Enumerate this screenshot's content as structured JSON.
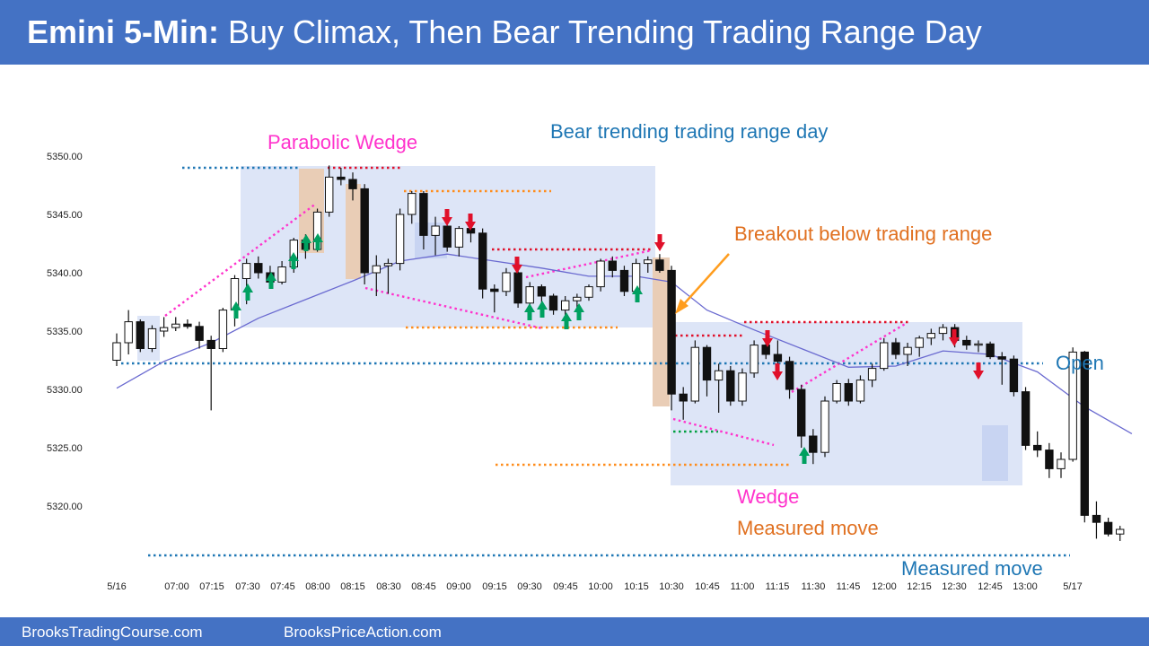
{
  "header": {
    "title_bold": "Emini 5-Min:",
    "title_rest": "Buy Climax, Then Bear Trending Trading Range Day"
  },
  "footer": {
    "left": "BrooksTradingCourse.com",
    "right": "BrooksPriceAction.com"
  },
  "colors": {
    "banner": "#4472c4",
    "magenta": "#ff33cc",
    "orange": "#e07020",
    "blue_text": "#1f77b4",
    "bull_arrow": "#00a060",
    "bear_arrow": "#e0102a",
    "range_box": "#dde5f7",
    "climax_box": "#e9cdb6",
    "ema": "#6a6ad0",
    "dotted_blue": "#1f77b4",
    "dotted_red": "#e0102a",
    "dotted_orange": "#ff8c1a",
    "dotted_green": "#00a040"
  },
  "annotations": {
    "parabolic_wedge": "Parabolic Wedge",
    "bear_trending": "Bear trending trading range day",
    "breakout": "Breakout below trading range",
    "open": "Open",
    "wedge": "Wedge",
    "measured_move_1": "Measured move",
    "measured_move_2": "Measured move"
  },
  "chart_data": {
    "type": "candlestick",
    "interval": "5-Min",
    "ylim": [
      5316.0,
      5352.5
    ],
    "y_ticks": [
      "5350.00",
      "5345.00",
      "5340.00",
      "5335.00",
      "5330.00",
      "5325.00",
      "5320.00"
    ],
    "x_ticks": [
      "5/16",
      "07:00",
      "07:15",
      "07:30",
      "07:45",
      "08:00",
      "08:15",
      "08:30",
      "08:45",
      "09:00",
      "09:15",
      "09:30",
      "09:45",
      "10:00",
      "10:15",
      "10:30",
      "10:45",
      "11:00",
      "11:15",
      "11:30",
      "11:45",
      "12:00",
      "12:15",
      "12:30",
      "12:45",
      "13:00",
      "5/17"
    ],
    "open_level": 5332.2,
    "ohlc": [
      [
        5332.5,
        5334.8,
        5332.0,
        5334.0
      ],
      [
        5334.0,
        5336.8,
        5333.0,
        5335.8
      ],
      [
        5335.8,
        5336.0,
        5333.2,
        5333.5
      ],
      [
        5333.5,
        5335.5,
        5333.2,
        5335.2
      ],
      [
        5335.0,
        5336.2,
        5334.5,
        5335.3
      ],
      [
        5335.3,
        5336.2,
        5335.0,
        5335.6
      ],
      [
        5335.6,
        5336.0,
        5335.2,
        5335.4
      ],
      [
        5335.4,
        5335.8,
        5333.5,
        5334.2
      ],
      [
        5334.2,
        5334.6,
        5328.2,
        5333.5
      ],
      [
        5333.5,
        5337.0,
        5333.2,
        5336.8
      ],
      [
        5336.8,
        5339.8,
        5335.4,
        5339.5
      ],
      [
        5339.5,
        5341.2,
        5337.3,
        5340.8
      ],
      [
        5340.8,
        5341.4,
        5339.5,
        5340.0
      ],
      [
        5340.0,
        5340.6,
        5338.8,
        5339.2
      ],
      [
        5339.2,
        5341.0,
        5339.0,
        5340.5
      ],
      [
        5340.5,
        5343.0,
        5340.0,
        5342.8
      ],
      [
        5342.8,
        5343.3,
        5341.2,
        5342.0
      ],
      [
        5342.0,
        5345.5,
        5341.8,
        5345.2
      ],
      [
        5345.2,
        5349.2,
        5344.8,
        5348.2
      ],
      [
        5348.2,
        5349.0,
        5347.5,
        5348.0
      ],
      [
        5348.0,
        5348.6,
        5346.2,
        5347.2
      ],
      [
        5347.2,
        5347.6,
        5339.0,
        5340.0
      ],
      [
        5340.0,
        5341.5,
        5338.0,
        5340.6
      ],
      [
        5340.6,
        5341.2,
        5338.2,
        5340.8
      ],
      [
        5340.8,
        5345.5,
        5340.2,
        5345.0
      ],
      [
        5345.0,
        5347.0,
        5344.2,
        5346.8
      ],
      [
        5346.8,
        5347.0,
        5342.0,
        5343.2
      ],
      [
        5343.2,
        5344.8,
        5341.5,
        5344.0
      ],
      [
        5344.0,
        5344.2,
        5341.8,
        5342.2
      ],
      [
        5342.2,
        5344.0,
        5341.4,
        5343.8
      ],
      [
        5343.8,
        5344.2,
        5342.6,
        5343.4
      ],
      [
        5343.4,
        5343.8,
        5337.8,
        5338.6
      ],
      [
        5338.6,
        5339.0,
        5336.6,
        5338.4
      ],
      [
        5338.4,
        5340.4,
        5338.0,
        5340.0
      ],
      [
        5340.0,
        5340.5,
        5337.0,
        5337.4
      ],
      [
        5337.4,
        5339.2,
        5337.0,
        5338.8
      ],
      [
        5338.8,
        5339.0,
        5337.4,
        5338.0
      ],
      [
        5338.0,
        5338.2,
        5336.4,
        5336.8
      ],
      [
        5336.8,
        5338.0,
        5336.0,
        5337.6
      ],
      [
        5337.6,
        5338.2,
        5336.6,
        5337.9
      ],
      [
        5337.9,
        5339.0,
        5337.6,
        5338.8
      ],
      [
        5338.8,
        5341.2,
        5338.4,
        5341.0
      ],
      [
        5341.0,
        5341.4,
        5339.6,
        5340.2
      ],
      [
        5340.2,
        5340.6,
        5338.0,
        5338.4
      ],
      [
        5338.4,
        5341.2,
        5338.2,
        5340.8
      ],
      [
        5340.8,
        5341.4,
        5340.0,
        5341.1
      ],
      [
        5341.1,
        5341.6,
        5340.0,
        5340.2
      ],
      [
        5340.2,
        5340.6,
        5328.2,
        5329.6
      ],
      [
        5329.6,
        5330.2,
        5327.4,
        5329.0
      ],
      [
        5329.0,
        5334.2,
        5328.8,
        5333.6
      ],
      [
        5333.6,
        5333.8,
        5329.4,
        5330.8
      ],
      [
        5330.8,
        5332.2,
        5328.0,
        5331.6
      ],
      [
        5331.6,
        5332.0,
        5328.6,
        5329.0
      ],
      [
        5329.0,
        5331.8,
        5328.6,
        5331.4
      ],
      [
        5331.4,
        5334.2,
        5331.0,
        5333.8
      ],
      [
        5333.8,
        5334.6,
        5332.6,
        5333.0
      ],
      [
        5333.0,
        5334.2,
        5332.0,
        5332.4
      ],
      [
        5332.4,
        5332.8,
        5329.2,
        5330.0
      ],
      [
        5330.0,
        5330.4,
        5325.0,
        5326.0
      ],
      [
        5326.0,
        5326.6,
        5323.6,
        5324.6
      ],
      [
        5324.6,
        5329.4,
        5324.2,
        5329.0
      ],
      [
        5329.0,
        5330.8,
        5328.8,
        5330.5
      ],
      [
        5330.5,
        5330.9,
        5328.6,
        5329.0
      ],
      [
        5329.0,
        5331.2,
        5328.8,
        5330.8
      ],
      [
        5330.8,
        5332.2,
        5330.2,
        5331.8
      ],
      [
        5331.8,
        5334.4,
        5331.6,
        5334.0
      ],
      [
        5334.0,
        5334.4,
        5332.6,
        5333.0
      ],
      [
        5333.0,
        5334.0,
        5332.0,
        5333.6
      ],
      [
        5333.6,
        5334.6,
        5332.8,
        5334.4
      ],
      [
        5334.4,
        5335.2,
        5333.8,
        5334.8
      ],
      [
        5334.8,
        5335.6,
        5334.2,
        5335.3
      ],
      [
        5335.3,
        5335.6,
        5333.6,
        5334.2
      ],
      [
        5334.2,
        5334.6,
        5333.4,
        5333.8
      ],
      [
        5333.8,
        5334.2,
        5333.2,
        5333.9
      ],
      [
        5333.9,
        5334.1,
        5332.6,
        5332.8
      ],
      [
        5332.8,
        5333.2,
        5330.4,
        5332.6
      ],
      [
        5332.6,
        5332.9,
        5329.4,
        5329.8
      ],
      [
        5329.8,
        5330.2,
        5324.8,
        5325.2
      ],
      [
        5325.2,
        5326.4,
        5324.2,
        5324.8
      ],
      [
        5324.8,
        5325.4,
        5322.4,
        5323.2
      ],
      [
        5323.2,
        5324.6,
        5322.4,
        5324.0
      ],
      [
        5324.0,
        5333.6,
        5323.8,
        5333.2
      ],
      [
        5333.2,
        5333.3,
        5318.6,
        5319.2
      ],
      [
        5319.2,
        5320.4,
        5317.2,
        5318.6
      ],
      [
        5318.6,
        5319.0,
        5317.4,
        5317.6
      ],
      [
        5317.6,
        5318.3,
        5317.0,
        5318.0
      ]
    ],
    "ema": [
      [
        0,
        5330.1
      ],
      [
        4,
        5332.4
      ],
      [
        8,
        5334.0
      ],
      [
        12,
        5336.1
      ],
      [
        16,
        5337.7
      ],
      [
        20,
        5339.3
      ],
      [
        24,
        5341.0
      ],
      [
        28,
        5341.6
      ],
      [
        32,
        5341.0
      ],
      [
        36,
        5340.4
      ],
      [
        40,
        5339.7
      ],
      [
        44,
        5339.7
      ],
      [
        47,
        5339.2
      ],
      [
        50,
        5336.8
      ],
      [
        54,
        5335.1
      ],
      [
        58,
        5333.5
      ],
      [
        62,
        5331.9
      ],
      [
        66,
        5332.0
      ],
      [
        70,
        5333.3
      ],
      [
        74,
        5333.0
      ],
      [
        78,
        5331.5
      ],
      [
        82,
        5328.5
      ],
      [
        86,
        5326.2
      ]
    ]
  }
}
